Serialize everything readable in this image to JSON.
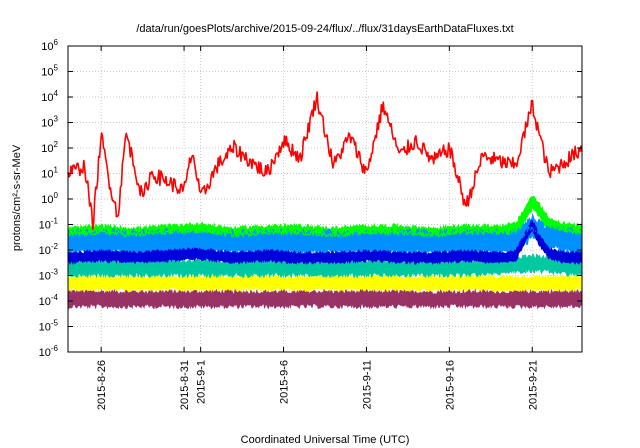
{
  "chart_data": {
    "type": "line",
    "title": "/data/run/goesPlots/archive/2015-09-24/flux/../flux/31daysEarthDataFluxes.txt",
    "xlabel": "Coordinated Universal Time (UTC)",
    "ylabel": "protons/cm²-s-sr-MeV",
    "yscale": "log",
    "ylim": [
      1e-06,
      1000000.0
    ],
    "xlim": [
      "2015-08-24",
      "2015-09-24"
    ],
    "grid": true,
    "y_ticks": [
      {
        "value": 1e-06,
        "label": "10",
        "exp": "-6"
      },
      {
        "value": 1e-05,
        "label": "10",
        "exp": "-5"
      },
      {
        "value": 0.0001,
        "label": "10",
        "exp": "-4"
      },
      {
        "value": 0.001,
        "label": "10",
        "exp": "-3"
      },
      {
        "value": 0.01,
        "label": "10",
        "exp": "-2"
      },
      {
        "value": 0.1,
        "label": "10",
        "exp": "-1"
      },
      {
        "value": 1,
        "label": "10",
        "exp": "0"
      },
      {
        "value": 10.0,
        "label": "10",
        "exp": "1"
      },
      {
        "value": 100.0,
        "label": "10",
        "exp": "2"
      },
      {
        "value": 1000.0,
        "label": "10",
        "exp": "3"
      },
      {
        "value": 10000.0,
        "label": "10",
        "exp": "4"
      },
      {
        "value": 100000.0,
        "label": "10",
        "exp": "5"
      },
      {
        "value": 1000000.0,
        "label": "10",
        "exp": "6"
      }
    ],
    "x_ticks": [
      {
        "value": "2015-08-26",
        "label": "2015-8-26"
      },
      {
        "value": "2015-08-31",
        "label": "2015-8-31"
      },
      {
        "value": "2015-09-01",
        "label": "2015-9-1"
      },
      {
        "value": "2015-09-06",
        "label": "2015-9-6"
      },
      {
        "value": "2015-09-11",
        "label": "2015-9-11"
      },
      {
        "value": "2015-09-16",
        "label": "2015-9-16"
      },
      {
        "value": "2015-09-21",
        "label": "2015-9-21"
      }
    ],
    "series": [
      {
        "key": "red",
        "color": "#ff0000",
        "width": 1.6,
        "x": [
          "2015-08-24",
          "2015-08-25",
          "2015-08-25T12:00",
          "2015-08-26",
          "2015-08-26T12:00",
          "2015-08-27",
          "2015-08-27T12:00",
          "2015-08-28",
          "2015-08-28T12:00",
          "2015-08-29",
          "2015-08-30",
          "2015-08-31",
          "2015-08-31T12:00",
          "2015-09-01",
          "2015-09-02",
          "2015-09-03",
          "2015-09-04",
          "2015-09-05",
          "2015-09-06",
          "2015-09-07",
          "2015-09-08",
          "2015-09-08T12:00",
          "2015-09-09",
          "2015-09-10",
          "2015-09-11",
          "2015-09-12",
          "2015-09-13",
          "2015-09-14",
          "2015-09-15",
          "2015-09-16",
          "2015-09-17",
          "2015-09-18",
          "2015-09-19",
          "2015-09-20",
          "2015-09-21",
          "2015-09-22",
          "2015-09-23",
          "2015-09-24"
        ],
        "values": [
          10,
          20,
          0.1,
          300,
          5,
          0.2,
          400,
          20,
          1,
          10,
          5,
          2,
          80,
          1,
          20,
          100,
          30,
          10,
          200,
          40,
          10000,
          500,
          20,
          300,
          10,
          5000,
          50,
          200,
          30,
          100,
          0.5,
          50,
          30,
          20,
          5000,
          10,
          30,
          100
        ]
      },
      {
        "key": "green",
        "color": "#00ff00",
        "width": 1.2,
        "x": [
          "2015-08-24",
          "2015-08-26",
          "2015-08-28",
          "2015-08-30",
          "2015-09-01",
          "2015-09-03",
          "2015-09-05",
          "2015-09-07",
          "2015-09-09",
          "2015-09-11",
          "2015-09-13",
          "2015-09-15",
          "2015-09-17",
          "2015-09-19",
          "2015-09-20",
          "2015-09-21",
          "2015-09-21T12:00",
          "2015-09-22",
          "2015-09-23",
          "2015-09-24"
        ],
        "values": [
          0.04,
          0.05,
          0.04,
          0.05,
          0.06,
          0.04,
          0.05,
          0.05,
          0.04,
          0.05,
          0.05,
          0.04,
          0.05,
          0.05,
          0.06,
          0.8,
          0.3,
          0.1,
          0.06,
          0.05
        ]
      },
      {
        "key": "blue",
        "color": "#0000dd",
        "width": 1.2,
        "x": [
          "2015-08-24",
          "2015-08-26",
          "2015-08-28",
          "2015-08-30",
          "2015-09-01",
          "2015-09-03",
          "2015-09-05",
          "2015-09-07",
          "2015-09-09",
          "2015-09-11",
          "2015-09-13",
          "2015-09-15",
          "2015-09-17",
          "2015-09-19",
          "2015-09-20",
          "2015-09-21",
          "2015-09-21T12:00",
          "2015-09-22",
          "2015-09-23",
          "2015-09-24"
        ],
        "values": [
          0.005,
          0.006,
          0.005,
          0.006,
          0.007,
          0.005,
          0.006,
          0.005,
          0.005,
          0.006,
          0.005,
          0.005,
          0.006,
          0.005,
          0.006,
          0.1,
          0.02,
          0.007,
          0.005,
          0.005
        ]
      },
      {
        "key": "azure",
        "color": "#0090ff",
        "width": 1.2,
        "x": [
          "2015-08-24",
          "2015-08-28",
          "2015-09-01",
          "2015-09-05",
          "2015-09-09",
          "2015-09-13",
          "2015-09-17",
          "2015-09-20",
          "2015-09-21",
          "2015-09-22",
          "2015-09-24"
        ],
        "values": [
          0.02,
          0.02,
          0.02,
          0.02,
          0.02,
          0.02,
          0.02,
          0.02,
          0.08,
          0.03,
          0.02
        ]
      },
      {
        "key": "teal",
        "color": "#00c8a0",
        "width": 1.2,
        "x": [
          "2015-08-24",
          "2015-08-30",
          "2015-09-05",
          "2015-09-11",
          "2015-09-17",
          "2015-09-21",
          "2015-09-24"
        ],
        "values": [
          0.002,
          0.002,
          0.002,
          0.002,
          0.002,
          0.003,
          0.002
        ]
      },
      {
        "key": "yellow",
        "color": "#ffff00",
        "width": 1.2,
        "x": [
          "2015-08-24",
          "2015-08-30",
          "2015-09-05",
          "2015-09-11",
          "2015-09-17",
          "2015-09-24"
        ],
        "values": [
          0.0005,
          0.0005,
          0.0005,
          0.0005,
          0.0005,
          0.0005
        ]
      },
      {
        "key": "maroon",
        "color": "#993366",
        "width": 1.2,
        "x": [
          "2015-08-24",
          "2015-08-30",
          "2015-09-05",
          "2015-09-11",
          "2015-09-17",
          "2015-09-24"
        ],
        "values": [
          0.00012,
          0.00012,
          0.00012,
          0.00012,
          0.00012,
          0.00012
        ]
      }
    ]
  }
}
